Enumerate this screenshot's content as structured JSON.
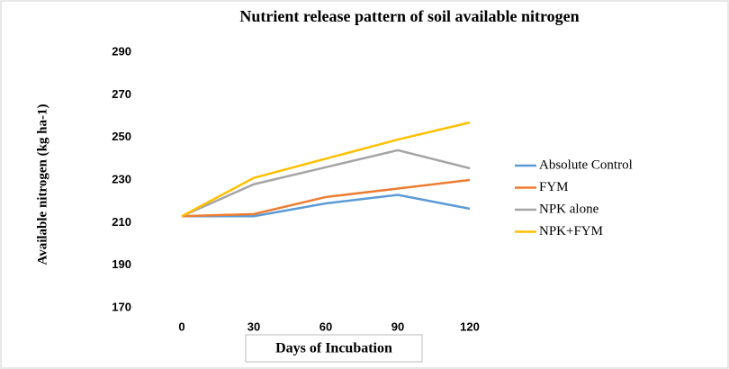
{
  "chart_data": {
    "type": "line",
    "title": "Nutrient release pattern of soil available nitrogen",
    "x_label": "Days of Incubation",
    "y_label": "Available nitrogen (kg ha-1)",
    "categories": [
      "0",
      "30",
      "60",
      "90",
      "120"
    ],
    "series": [
      {
        "name": "Absolute Control",
        "color": "#5b9bd5",
        "values": [
          213,
          213,
          219,
          223,
          216.5
        ]
      },
      {
        "name": "FYM",
        "color": "#ed7d31",
        "values": [
          213,
          214,
          222,
          226,
          230
        ]
      },
      {
        "name": "NPK alone",
        "color": "#a5a5a5",
        "values": [
          213,
          228,
          236,
          244,
          235.5
        ]
      },
      {
        "name": "NPK+FYM",
        "color": "#ffc000",
        "values": [
          213,
          231,
          240,
          249,
          257
        ]
      }
    ],
    "ylim": [
      170,
      290
    ],
    "yticks": [
      170,
      190,
      210,
      230,
      250,
      270,
      290
    ],
    "legend": "right",
    "grid": false
  }
}
